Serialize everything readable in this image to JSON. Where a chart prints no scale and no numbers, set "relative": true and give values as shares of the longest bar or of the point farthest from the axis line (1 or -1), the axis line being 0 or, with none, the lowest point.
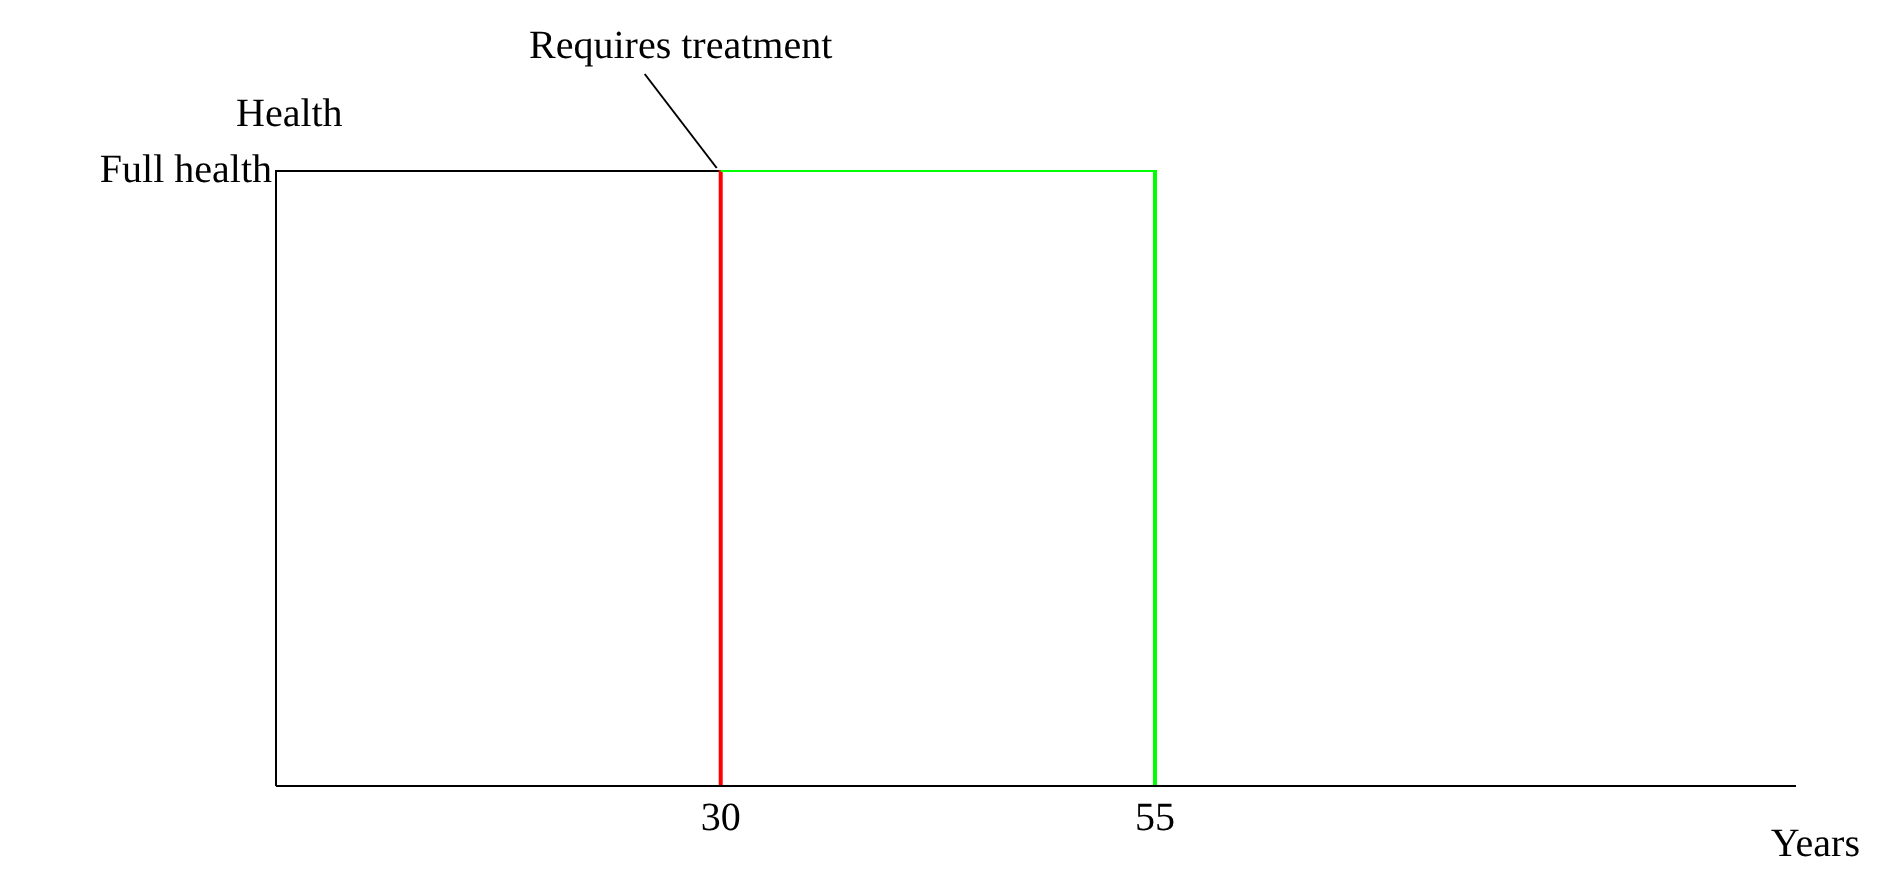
{
  "chart_data": {
    "type": "line",
    "xlabel": "Years",
    "ylabel": "Health",
    "relative": true,
    "xlim": [
      4.4,
      91.9
    ],
    "xticks": [
      30,
      55
    ],
    "series": [
      {
        "color": "#000000",
        "x": [
          4.4,
          30
        ],
        "values": [
          1,
          1
        ]
      },
      {
        "color": "#ff0000",
        "x": [
          30,
          30
        ],
        "values": [
          1,
          0
        ]
      },
      {
        "color": "#00ff00",
        "x": [
          30,
          55,
          55
        ],
        "values": [
          1,
          1,
          0
        ]
      }
    ],
    "annotations": [
      {
        "text": "Requires treatment",
        "x": 30,
        "y": 1
      },
      "Full health"
    ],
    "marker": "none",
    "line_style": "solid",
    "grid": false,
    "legend": false
  }
}
